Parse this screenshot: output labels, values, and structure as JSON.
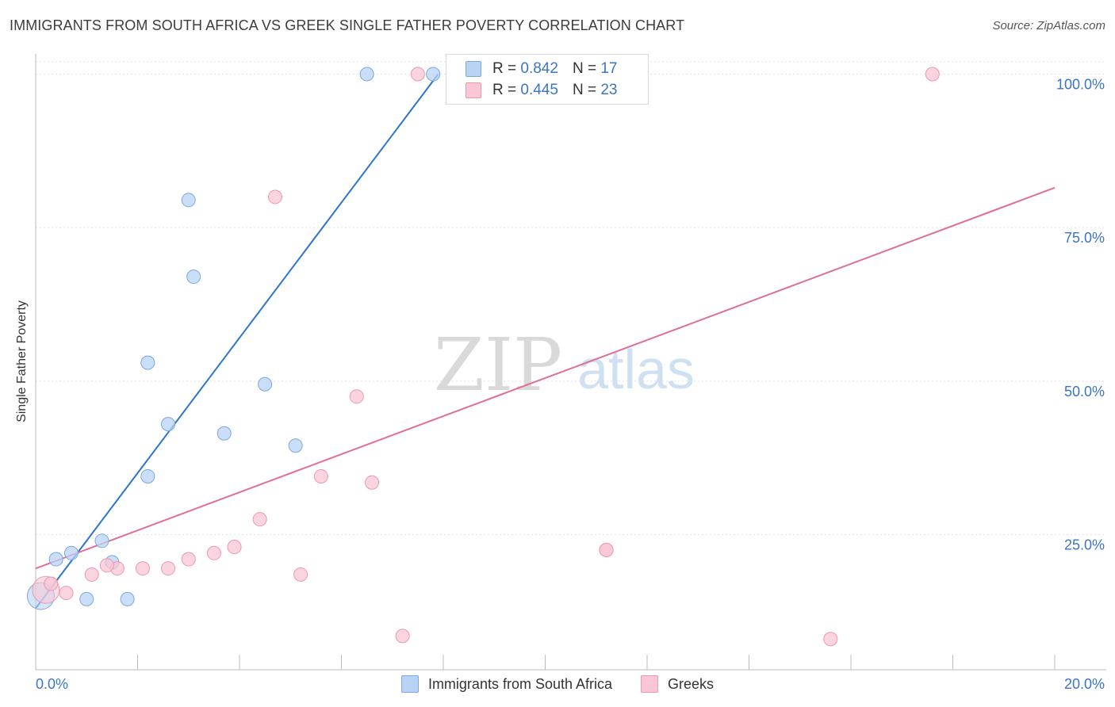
{
  "title": "IMMIGRANTS FROM SOUTH AFRICA VS GREEK SINGLE FATHER POVERTY CORRELATION CHART",
  "source": "Source: ZipAtlas.com",
  "watermark": {
    "zip": "ZIP",
    "atlas": "atlas"
  },
  "legend": {
    "rows": [
      {
        "r_label": "R =",
        "r_value": "0.842",
        "n_label": "N =",
        "n_value": "17"
      },
      {
        "r_label": "R =",
        "r_value": "0.445",
        "n_label": "N =",
        "n_value": "23"
      }
    ]
  },
  "bottom_legend": {
    "series1": "Immigrants from South Africa",
    "series2": "Greeks"
  },
  "colors": {
    "blue_fill": "#b8d3f4",
    "blue_stroke": "#7aa8e0",
    "blue_line": "#2c74d1",
    "pink_fill": "#f8c6d4",
    "pink_stroke": "#ee97b0",
    "pink_line": "#e06e96",
    "tick_label": "#3a74c8",
    "grid": "#e2e2e2"
  },
  "chart_data": {
    "type": "scatter",
    "title": "IMMIGRANTS FROM SOUTH AFRICA VS GREEK SINGLE FATHER POVERTY CORRELATION CHART",
    "xlabel": "",
    "ylabel": "Single Father Poverty",
    "xlim": [
      0,
      20
    ],
    "ylim": [
      3,
      102
    ],
    "x_tick_labels": [
      "0.0%",
      "20.0%"
    ],
    "y_ticks": [
      25,
      50,
      75,
      100
    ],
    "y_tick_labels": [
      "25.0%",
      "50.0%",
      "75.0%",
      "100.0%"
    ],
    "series": [
      {
        "name": "Immigrants from South Africa",
        "color": "#b8d3f4",
        "points": [
          {
            "x": 0.1,
            "y": 15.0,
            "big": true
          },
          {
            "x": 0.4,
            "y": 21.0
          },
          {
            "x": 0.7,
            "y": 22.0
          },
          {
            "x": 1.3,
            "y": 24.0
          },
          {
            "x": 1.0,
            "y": 14.5
          },
          {
            "x": 1.5,
            "y": 20.5
          },
          {
            "x": 1.8,
            "y": 14.5
          },
          {
            "x": 2.2,
            "y": 34.5
          },
          {
            "x": 2.6,
            "y": 43.0
          },
          {
            "x": 2.2,
            "y": 53.0
          },
          {
            "x": 3.0,
            "y": 79.5
          },
          {
            "x": 3.1,
            "y": 67.0
          },
          {
            "x": 3.7,
            "y": 41.5
          },
          {
            "x": 4.5,
            "y": 49.5
          },
          {
            "x": 5.1,
            "y": 39.5
          },
          {
            "x": 6.5,
            "y": 100.0
          },
          {
            "x": 7.8,
            "y": 100.0
          }
        ],
        "trendline": {
          "x1": 0.0,
          "y1": 13.0,
          "x2": 7.9,
          "y2": 100.0
        }
      },
      {
        "name": "Greeks",
        "color": "#f8c6d4",
        "points": [
          {
            "x": 0.2,
            "y": 16.0,
            "big": true
          },
          {
            "x": 0.6,
            "y": 15.5
          },
          {
            "x": 1.1,
            "y": 18.5
          },
          {
            "x": 1.6,
            "y": 19.5
          },
          {
            "x": 2.1,
            "y": 19.5
          },
          {
            "x": 2.6,
            "y": 19.5
          },
          {
            "x": 3.0,
            "y": 21.0
          },
          {
            "x": 3.5,
            "y": 22.0
          },
          {
            "x": 3.9,
            "y": 23.0
          },
          {
            "x": 4.4,
            "y": 27.5
          },
          {
            "x": 5.2,
            "y": 18.5
          },
          {
            "x": 4.7,
            "y": 80.0
          },
          {
            "x": 5.6,
            "y": 34.5
          },
          {
            "x": 6.3,
            "y": 47.5
          },
          {
            "x": 6.6,
            "y": 33.5
          },
          {
            "x": 7.2,
            "y": 8.5
          },
          {
            "x": 7.5,
            "y": 100.0
          },
          {
            "x": 11.2,
            "y": 22.5
          },
          {
            "x": 11.2,
            "y": 22.5
          },
          {
            "x": 15.6,
            "y": 8.0
          },
          {
            "x": 17.6,
            "y": 100.0
          },
          {
            "x": 0.3,
            "y": 17.0
          },
          {
            "x": 1.4,
            "y": 20.0
          }
        ],
        "trendline": {
          "x1": 0.0,
          "y1": 19.5,
          "x2": 20.0,
          "y2": 81.5
        }
      }
    ]
  }
}
